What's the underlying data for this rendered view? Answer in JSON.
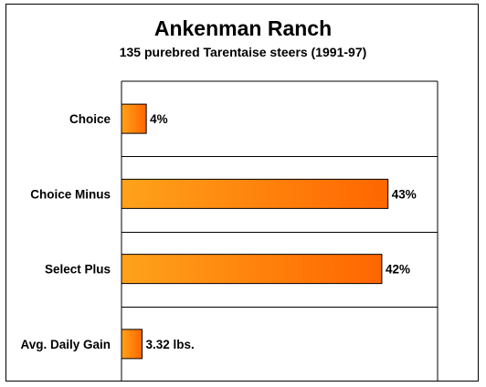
{
  "chart_data": {
    "type": "bar",
    "orientation": "horizontal",
    "title": "Ankenman Ranch",
    "subtitle": "135 purebred Tarentaise steers (1991-97)",
    "categories": [
      "Choice",
      "Choice Minus",
      "Select Plus",
      "Avg. Daily Gain"
    ],
    "values": [
      4,
      43,
      42,
      3.32
    ],
    "value_labels": [
      "4%",
      "43%",
      "42%",
      "3.32 lbs."
    ],
    "scale_max": 51,
    "grid": "horizontal separators between categories",
    "bar_gradient": [
      "#ffa21a",
      "#ff6600"
    ],
    "bar_border": "#000000"
  }
}
